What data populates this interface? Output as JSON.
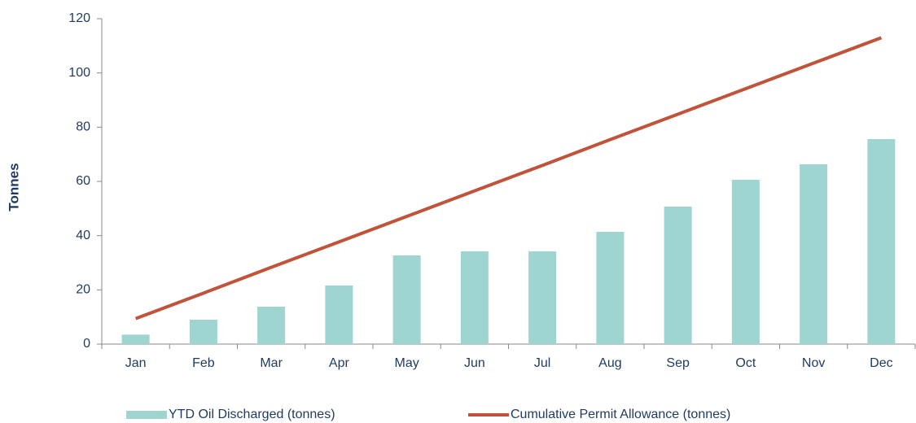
{
  "chart_data": {
    "type": "bar_line",
    "y_label": "Tonnes",
    "categories": [
      "Jan",
      "Feb",
      "Mar",
      "Apr",
      "May",
      "Jun",
      "Jul",
      "Aug",
      "Sep",
      "Oct",
      "Nov",
      "Dec"
    ],
    "series": [
      {
        "name": "YTD Oil Discharged (tonnes)",
        "type": "bar",
        "color": "#9fd5d1",
        "values": [
          3.5,
          9,
          13.8,
          21.6,
          32.7,
          34.2,
          34.2,
          41.4,
          50.7,
          60.6,
          66.3,
          75.6
        ]
      },
      {
        "name": "Cumulative Permit Allowance (tonnes)",
        "type": "line",
        "color": "#c0533a",
        "values": [
          9.4,
          18.8,
          28.3,
          37.7,
          47.1,
          56.5,
          65.9,
          75.4,
          84.8,
          94.2,
          103.6,
          113
        ]
      }
    ],
    "ylim": [
      0,
      120
    ],
    "yticks": [
      0,
      20,
      40,
      60,
      80,
      100,
      120
    ],
    "grid": false,
    "legend": "bottom"
  }
}
